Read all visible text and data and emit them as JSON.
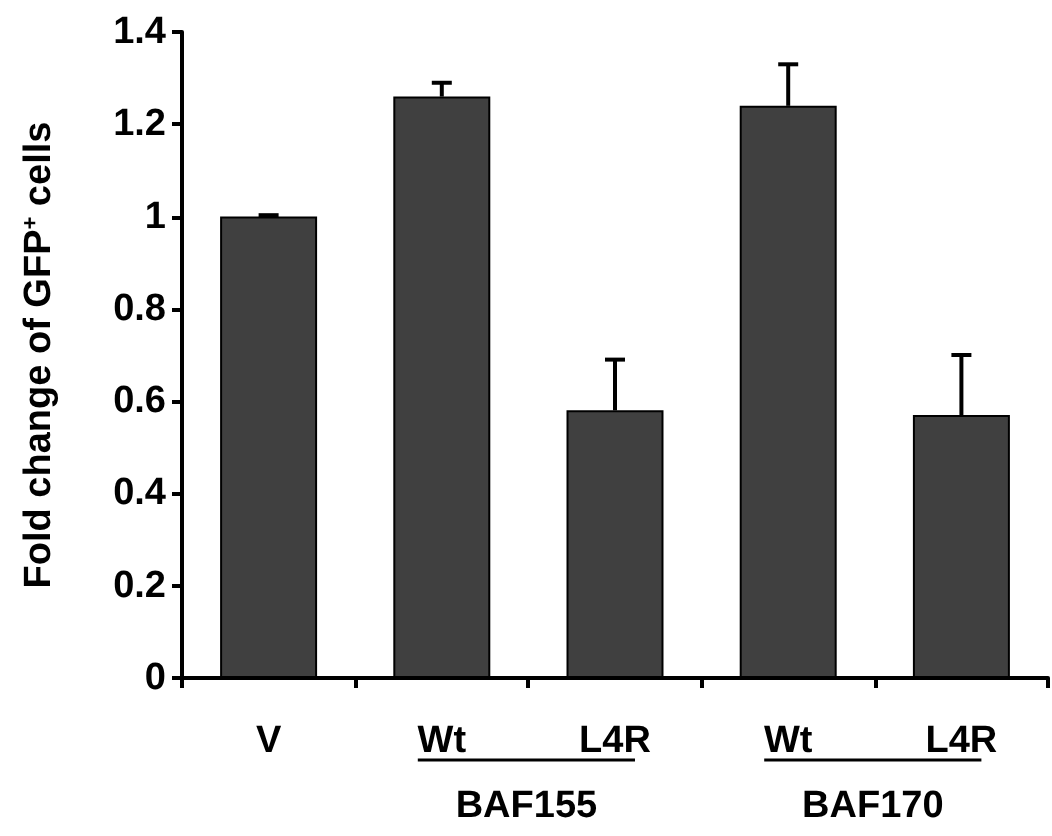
{
  "chart_data": {
    "type": "bar",
    "ylabel": "Fold change of GFP$^{+}$ cells",
    "categories": [
      "V",
      "Wt",
      "L4R",
      "Wt",
      "L4R"
    ],
    "values": [
      1.0,
      1.26,
      0.58,
      1.24,
      0.57
    ],
    "errors": [
      [
        1.0,
        1.003
      ],
      [
        1.26,
        1.29
      ],
      [
        0.58,
        0.69
      ],
      [
        1.24,
        1.33
      ],
      [
        0.57,
        0.7
      ]
    ],
    "color": "#404040",
    "ylim": [
      0,
      1.4
    ],
    "yticks": [
      0,
      0.2,
      0.4,
      0.6,
      0.8,
      1,
      1.2,
      1.4
    ],
    "annotations": [
      "BAF155",
      "BAF170"
    ]
  }
}
